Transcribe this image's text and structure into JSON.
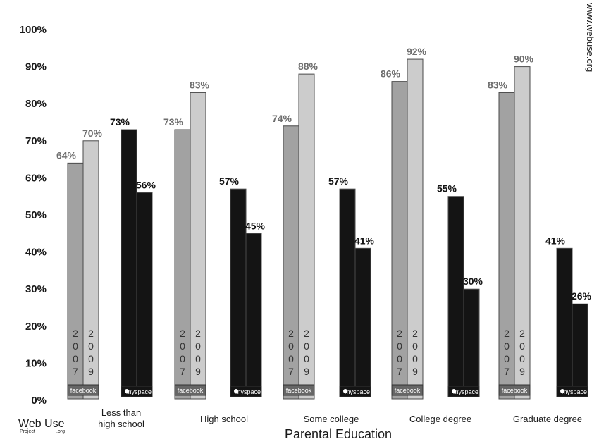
{
  "chart_data": {
    "type": "bar",
    "title": "",
    "xlabel": "Parental Education",
    "ylabel": "",
    "ylim": [
      0,
      100
    ],
    "yticks": [
      0,
      10,
      20,
      30,
      40,
      50,
      60,
      70,
      80,
      90,
      100
    ],
    "ytick_suffix": "%",
    "categories": [
      "Less than high school",
      "High school",
      "Some college",
      "College degree",
      "Graduate degree"
    ],
    "category_label_lines": [
      [
        "Less than",
        "high school"
      ],
      [
        "High school"
      ],
      [
        "Some college"
      ],
      [
        "College degree"
      ],
      [
        "Graduate degree"
      ]
    ],
    "groups": [
      {
        "brand": "facebook",
        "years": [
          "2007",
          "2009"
        ],
        "colors": [
          "#a2a2a2",
          "#cccccc"
        ],
        "label_color": "#6e6e6e",
        "strip_color": "#666666",
        "values": [
          [
            64,
            70
          ],
          [
            73,
            83
          ],
          [
            74,
            88
          ],
          [
            86,
            92
          ],
          [
            83,
            90
          ]
        ]
      },
      {
        "brand": "myspace",
        "years": [
          "2007",
          "2009"
        ],
        "colors": [
          "#141414",
          "#141414"
        ],
        "label_color": "#141414",
        "strip_color": "#141414",
        "values": [
          [
            73,
            56
          ],
          [
            57,
            45
          ],
          [
            57,
            41
          ],
          [
            55,
            30
          ],
          [
            41,
            26
          ]
        ]
      }
    ],
    "grid": false,
    "legend": "none"
  },
  "watermark": "www.webuse.org",
  "logo": {
    "name": "Web Use",
    "left": "Project",
    "right": ".org"
  }
}
